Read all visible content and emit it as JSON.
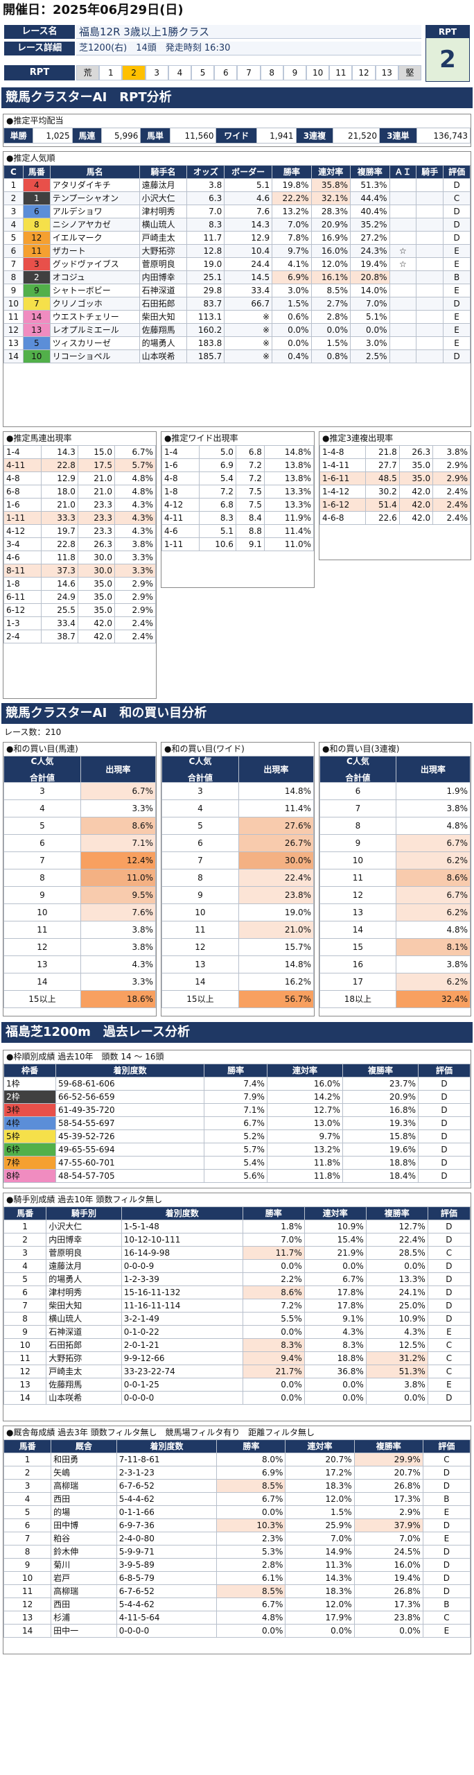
{
  "date": "開催日：2025年06月29日(日)",
  "header": {
    "race_label": "レース名",
    "race_name": "福島12R 3歳以上1勝クラス",
    "detail_label": "レース詳細",
    "detail": "芝1200(右)　14頭　発走時刻 16:30",
    "rpt_label": "RPT",
    "rpt_box_label": "RPT",
    "rpt_value": "2",
    "rpt_cells": [
      "荒",
      "1",
      "2",
      "3",
      "4",
      "5",
      "6",
      "7",
      "8",
      "9",
      "10",
      "11",
      "12",
      "13",
      "堅"
    ],
    "rpt_active": "2"
  },
  "sec1": "競馬クラスターAI　RPT分析",
  "payout": {
    "caption": "●推定平均配当",
    "items": [
      [
        "単勝",
        "1,025"
      ],
      [
        "馬連",
        "5,996"
      ],
      [
        "馬単",
        "11,560"
      ],
      [
        "ワイド",
        "1,941"
      ],
      [
        "3連複",
        "21,520"
      ],
      [
        "3連単",
        "136,743"
      ]
    ]
  },
  "popular": {
    "caption": "●推定人気順",
    "headers": [
      "C",
      "馬番",
      "馬名",
      "騎手名",
      "オッズ",
      "ボーダー",
      "勝率",
      "連対率",
      "複勝率",
      "ＡＩ",
      "騎手",
      "評価"
    ],
    "rows": [
      [
        "1",
        "4",
        "アタリダイキチ",
        "遠藤汰月",
        "3.8",
        "5.1",
        "19.8%",
        "35.8%",
        "51.3%",
        "",
        "",
        "D"
      ],
      [
        "2",
        "1",
        "テンプーシャオン",
        "小沢大仁",
        "6.3",
        "4.6",
        "22.2%",
        "32.1%",
        "44.4%",
        "",
        "",
        "C"
      ],
      [
        "3",
        "6",
        "アルデショワ",
        "津村明秀",
        "7.0",
        "7.6",
        "13.2%",
        "28.3%",
        "40.4%",
        "",
        "",
        "D"
      ],
      [
        "4",
        "8",
        "ニシノアヤカゼ",
        "横山琉人",
        "8.3",
        "14.3",
        "7.0%",
        "20.9%",
        "35.2%",
        "",
        "",
        "D"
      ],
      [
        "5",
        "12",
        "イエルマーク",
        "戸崎圭太",
        "11.7",
        "12.9",
        "7.8%",
        "16.9%",
        "27.2%",
        "",
        "",
        "D"
      ],
      [
        "6",
        "11",
        "ザカート",
        "大野拓弥",
        "12.8",
        "10.4",
        "9.7%",
        "16.0%",
        "24.3%",
        "☆",
        "",
        "E"
      ],
      [
        "7",
        "3",
        "グッドヴァイブス",
        "菅原明良",
        "19.0",
        "24.4",
        "4.1%",
        "12.0%",
        "19.4%",
        "☆",
        "",
        "E"
      ],
      [
        "8",
        "2",
        "オコジュ",
        "内田博幸",
        "25.1",
        "14.5",
        "6.9%",
        "16.1%",
        "20.8%",
        "",
        "",
        "B"
      ],
      [
        "9",
        "9",
        "シャトーボビー",
        "石神深道",
        "29.8",
        "33.4",
        "3.0%",
        "8.5%",
        "14.0%",
        "",
        "",
        "E"
      ],
      [
        "10",
        "7",
        "クリノゴッホ",
        "石田拓郎",
        "83.7",
        "66.7",
        "1.5%",
        "2.7%",
        "7.0%",
        "",
        "",
        "D"
      ],
      [
        "11",
        "14",
        "ウエストチェリー",
        "柴田大知",
        "113.1",
        "※",
        "0.6%",
        "2.8%",
        "5.1%",
        "",
        "",
        "E"
      ],
      [
        "12",
        "13",
        "レオプルミエール",
        "佐藤翔馬",
        "160.2",
        "※",
        "0.0%",
        "0.0%",
        "0.0%",
        "",
        "",
        "E"
      ],
      [
        "13",
        "5",
        "ツィスカリーゼ",
        "的場勇人",
        "183.8",
        "※",
        "0.0%",
        "1.5%",
        "3.0%",
        "",
        "",
        "E"
      ],
      [
        "14",
        "10",
        "リコーショペル",
        "山本咲希",
        "185.7",
        "※",
        "0.4%",
        "0.8%",
        "2.5%",
        "",
        "",
        "D"
      ]
    ]
  },
  "umaren": {
    "caption": "●推定馬連出現率",
    "headers": [
      "",
      "",
      "",
      "出現率"
    ],
    "rows": [
      [
        "1-4",
        "14.3",
        "15.0",
        "6.7%"
      ],
      [
        "4-11",
        "22.8",
        "17.5",
        "5.7%"
      ],
      [
        "4-8",
        "12.9",
        "21.0",
        "4.8%"
      ],
      [
        "6-8",
        "18.0",
        "21.0",
        "4.8%"
      ],
      [
        "1-6",
        "21.0",
        "23.3",
        "4.3%"
      ],
      [
        "1-11",
        "33.3",
        "23.3",
        "4.3%"
      ],
      [
        "4-12",
        "19.7",
        "23.3",
        "4.3%"
      ],
      [
        "3-4",
        "22.8",
        "26.3",
        "3.8%"
      ],
      [
        "4-6",
        "11.8",
        "30.0",
        "3.3%"
      ],
      [
        "8-11",
        "37.3",
        "30.0",
        "3.3%"
      ],
      [
        "1-8",
        "14.6",
        "35.0",
        "2.9%"
      ],
      [
        "6-11",
        "24.9",
        "35.0",
        "2.9%"
      ],
      [
        "6-12",
        "25.5",
        "35.0",
        "2.9%"
      ],
      [
        "1-3",
        "33.4",
        "42.0",
        "2.4%"
      ],
      [
        "2-4",
        "38.7",
        "42.0",
        "2.4%"
      ]
    ]
  },
  "wide": {
    "caption": "●推定ワイド出現率",
    "headers": [
      "",
      "",
      "ボーダー",
      "出現率"
    ],
    "rows": [
      [
        "1-4",
        "5.0",
        "6.8",
        "14.8%"
      ],
      [
        "1-6",
        "6.9",
        "7.2",
        "13.8%"
      ],
      [
        "4-8",
        "5.4",
        "7.2",
        "13.8%"
      ],
      [
        "1-8",
        "7.2",
        "7.5",
        "13.3%"
      ],
      [
        "4-12",
        "6.8",
        "7.5",
        "13.3%"
      ],
      [
        "4-11",
        "8.3",
        "8.4",
        "11.9%"
      ],
      [
        "4-6",
        "5.1",
        "8.8",
        "11.4%"
      ],
      [
        "1-11",
        "10.6",
        "9.1",
        "11.0%"
      ]
    ]
  },
  "trio": {
    "caption": "●推定3連複出現率",
    "headers": [
      "",
      "",
      "ボーダー",
      "出現率"
    ],
    "rows": [
      [
        "1-4-8",
        "21.8",
        "26.3",
        "3.8%"
      ],
      [
        "1-4-11",
        "27.7",
        "35.0",
        "2.9%"
      ],
      [
        "1-6-11",
        "48.5",
        "35.0",
        "2.9%"
      ],
      [
        "1-4-12",
        "30.2",
        "42.0",
        "2.4%"
      ],
      [
        "1-6-12",
        "51.4",
        "42.0",
        "2.4%"
      ],
      [
        "4-6-8",
        "22.6",
        "42.0",
        "2.4%"
      ]
    ]
  },
  "sec2": "競馬クラスターAI　和の買い目分析",
  "race_count": "レース数：210",
  "sum_umaren": {
    "caption": "●和の買い目(馬連)",
    "h1": "C人気",
    "h2": "合計値",
    "h3": "出現率",
    "rows": [
      [
        "3",
        "6.7%"
      ],
      [
        "4",
        "3.3%"
      ],
      [
        "5",
        "8.6%"
      ],
      [
        "6",
        "7.1%"
      ],
      [
        "7",
        "12.4%"
      ],
      [
        "8",
        "11.0%"
      ],
      [
        "9",
        "9.5%"
      ],
      [
        "10",
        "7.6%"
      ],
      [
        "11",
        "3.8%"
      ],
      [
        "12",
        "3.8%"
      ],
      [
        "13",
        "4.3%"
      ],
      [
        "14",
        "3.3%"
      ],
      [
        "15以上",
        "18.6%"
      ]
    ]
  },
  "sum_wide": {
    "caption": "●和の買い目(ワイド)",
    "h1": "C人気",
    "h2": "合計値",
    "h3": "出現率",
    "rows": [
      [
        "3",
        "14.8%"
      ],
      [
        "4",
        "11.4%"
      ],
      [
        "5",
        "27.6%"
      ],
      [
        "6",
        "26.7%"
      ],
      [
        "7",
        "30.0%"
      ],
      [
        "8",
        "22.4%"
      ],
      [
        "9",
        "23.8%"
      ],
      [
        "10",
        "19.0%"
      ],
      [
        "11",
        "21.0%"
      ],
      [
        "12",
        "15.7%"
      ],
      [
        "13",
        "14.8%"
      ],
      [
        "14",
        "16.2%"
      ],
      [
        "15以上",
        "56.7%"
      ]
    ]
  },
  "sum_trio": {
    "caption": "●和の買い目(3連複)",
    "h1": "C人気",
    "h2": "合計値",
    "h3": "出現率",
    "rows": [
      [
        "6",
        "1.9%"
      ],
      [
        "7",
        "3.8%"
      ],
      [
        "8",
        "4.8%"
      ],
      [
        "9",
        "6.7%"
      ],
      [
        "10",
        "6.2%"
      ],
      [
        "11",
        "8.6%"
      ],
      [
        "12",
        "6.7%"
      ],
      [
        "13",
        "6.2%"
      ],
      [
        "14",
        "4.8%"
      ],
      [
        "15",
        "8.1%"
      ],
      [
        "16",
        "3.8%"
      ],
      [
        "17",
        "6.2%"
      ],
      [
        "18以上",
        "32.4%"
      ]
    ]
  },
  "sec3": "福島芝1200m　過去レース分析",
  "waku": {
    "caption": "●枠順別成績 過去10年　頭数 14 ～ 16頭",
    "headers": [
      "枠番",
      "着別度数",
      "勝率",
      "連対率",
      "複勝率",
      "評価"
    ],
    "rows": [
      [
        "1枠",
        "59-68-61-606",
        "7.4%",
        "16.0%",
        "23.7%",
        "D"
      ],
      [
        "2枠",
        "66-52-56-659",
        "7.9%",
        "14.2%",
        "20.9%",
        "D"
      ],
      [
        "3枠",
        "61-49-35-720",
        "7.1%",
        "12.7%",
        "16.8%",
        "D"
      ],
      [
        "4枠",
        "58-54-55-697",
        "6.7%",
        "13.0%",
        "19.3%",
        "D"
      ],
      [
        "5枠",
        "45-39-52-726",
        "5.2%",
        "9.7%",
        "15.8%",
        "D"
      ],
      [
        "6枠",
        "49-65-55-694",
        "5.7%",
        "13.2%",
        "19.6%",
        "D"
      ],
      [
        "7枠",
        "47-55-60-701",
        "5.4%",
        "11.8%",
        "18.8%",
        "D"
      ],
      [
        "8枠",
        "48-54-57-705",
        "5.6%",
        "11.8%",
        "18.4%",
        "D"
      ]
    ]
  },
  "jockey": {
    "caption": "●騎手別成績 過去10年 頭数フィルタ無し",
    "headers": [
      "馬番",
      "騎手別",
      "着別度数",
      "勝率",
      "連対率",
      "複勝率",
      "評価"
    ],
    "rows": [
      [
        "1",
        "小沢大仁",
        "1-5-1-48",
        "1.8%",
        "10.9%",
        "12.7%",
        "D"
      ],
      [
        "2",
        "内田博幸",
        "10-12-10-111",
        "7.0%",
        "15.4%",
        "22.4%",
        "D"
      ],
      [
        "3",
        "菅原明良",
        "16-14-9-98",
        "11.7%",
        "21.9%",
        "28.5%",
        "C"
      ],
      [
        "4",
        "遠藤汰月",
        "0-0-0-9",
        "0.0%",
        "0.0%",
        "0.0%",
        "D"
      ],
      [
        "5",
        "的場勇人",
        "1-2-3-39",
        "2.2%",
        "6.7%",
        "13.3%",
        "D"
      ],
      [
        "6",
        "津村明秀",
        "15-16-11-132",
        "8.6%",
        "17.8%",
        "24.1%",
        "D"
      ],
      [
        "7",
        "柴田大知",
        "11-16-11-114",
        "7.2%",
        "17.8%",
        "25.0%",
        "D"
      ],
      [
        "8",
        "横山琉人",
        "3-2-1-49",
        "5.5%",
        "9.1%",
        "10.9%",
        "D"
      ],
      [
        "9",
        "石神深道",
        "0-1-0-22",
        "0.0%",
        "4.3%",
        "4.3%",
        "E"
      ],
      [
        "10",
        "石田拓郎",
        "2-0-1-21",
        "8.3%",
        "8.3%",
        "12.5%",
        "C"
      ],
      [
        "11",
        "大野拓弥",
        "9-9-12-66",
        "9.4%",
        "18.8%",
        "31.2%",
        "C"
      ],
      [
        "12",
        "戸崎圭太",
        "33-23-22-74",
        "21.7%",
        "36.8%",
        "51.3%",
        "C"
      ],
      [
        "13",
        "佐藤翔馬",
        "0-0-1-25",
        "0.0%",
        "0.0%",
        "3.8%",
        "E"
      ],
      [
        "14",
        "山本咲希",
        "0-0-0-0",
        "0.0%",
        "0.0%",
        "0.0%",
        "D"
      ]
    ]
  },
  "trainer": {
    "caption": "●厩舎毎成績 過去3年 頭数フィルタ無し　競馬場フィルタ有り　距離フィルタ無し",
    "headers": [
      "馬番",
      "厩舎",
      "着別度数",
      "勝率",
      "連対率",
      "複勝率",
      "評価"
    ],
    "rows": [
      [
        "1",
        "和田勇",
        "7-11-8-61",
        "8.0%",
        "20.7%",
        "29.9%",
        "C"
      ],
      [
        "2",
        "矢嶋",
        "2-3-1-23",
        "6.9%",
        "17.2%",
        "20.7%",
        "D"
      ],
      [
        "3",
        "高柳瑞",
        "6-7-6-52",
        "8.5%",
        "18.3%",
        "26.8%",
        "D"
      ],
      [
        "4",
        "西田",
        "5-4-4-62",
        "6.7%",
        "12.0%",
        "17.3%",
        "B"
      ],
      [
        "5",
        "的場",
        "0-1-1-66",
        "0.0%",
        "1.5%",
        "2.9%",
        "E"
      ],
      [
        "6",
        "田中博",
        "6-9-7-36",
        "10.3%",
        "25.9%",
        "37.9%",
        "D"
      ],
      [
        "7",
        "粕谷",
        "2-4-0-80",
        "2.3%",
        "7.0%",
        "7.0%",
        "E"
      ],
      [
        "8",
        "鈴木伸",
        "5-9-9-71",
        "5.3%",
        "14.9%",
        "24.5%",
        "D"
      ],
      [
        "9",
        "菊川",
        "3-9-5-89",
        "2.8%",
        "11.3%",
        "16.0%",
        "D"
      ],
      [
        "10",
        "岩戸",
        "6-8-5-79",
        "6.1%",
        "14.3%",
        "19.4%",
        "D"
      ],
      [
        "11",
        "高柳瑞",
        "6-7-6-52",
        "8.5%",
        "18.3%",
        "26.8%",
        "D"
      ],
      [
        "12",
        "西田",
        "5-4-4-62",
        "6.7%",
        "12.0%",
        "17.3%",
        "B"
      ],
      [
        "13",
        "杉浦",
        "4-11-5-64",
        "4.8%",
        "17.9%",
        "23.8%",
        "C"
      ],
      [
        "14",
        "田中一",
        "0-0-0-0",
        "0.0%",
        "0.0%",
        "0.0%",
        "E"
      ]
    ]
  },
  "colors": {
    "navy": "#1f3864",
    "waku": [
      "#ffffff",
      "#404040",
      "#e8504a",
      "#5b8ed8",
      "#f5e04a",
      "#52b04a",
      "#f5a030",
      "#f08cc0"
    ]
  }
}
